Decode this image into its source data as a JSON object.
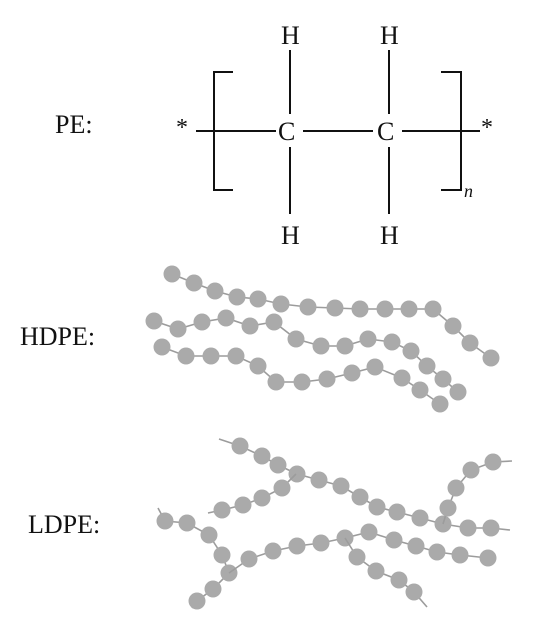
{
  "labels": {
    "pe": "PE:",
    "hdpe": "HDPE:",
    "ldpe": "LDPE:"
  },
  "structure": {
    "carbon": "C",
    "hydrogen": "H",
    "end_group": "*",
    "repeat_subscript": "n"
  },
  "colors": {
    "bead": "#aaaaaa",
    "chain_line": "#9c9c9c",
    "ink": "#111111"
  }
}
